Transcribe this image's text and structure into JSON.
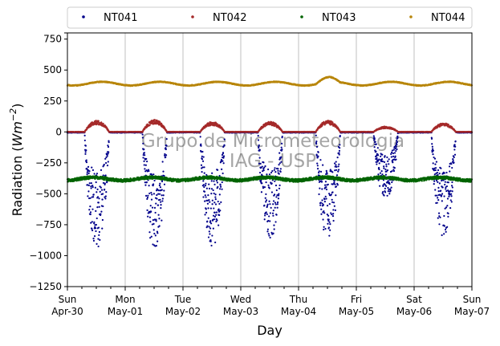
{
  "chart_data": {
    "type": "scatter",
    "title": "",
    "xlabel": "Day",
    "ylabel_main": "Radiation (",
    "ylabel_unit": "Wm",
    "ylabel_exp": "−2",
    "ylabel_close": ")",
    "ylim": [
      -1250,
      800
    ],
    "yticks": [
      800,
      750,
      500,
      250,
      0,
      -250,
      -500,
      -750,
      -1000,
      -1250
    ],
    "ytick_labels": [
      "",
      "750",
      "500",
      "250",
      "0",
      "−250",
      "−500",
      "−750",
      "−1000",
      "−1250"
    ],
    "xlim": [
      "2017-04-30",
      "2017-05-07"
    ],
    "xticks": [
      {
        "day": "Sun",
        "date": "Apr-30"
      },
      {
        "day": "Mon",
        "date": "May-01"
      },
      {
        "day": "Tue",
        "date": "May-02"
      },
      {
        "day": "Wed",
        "date": "May-03"
      },
      {
        "day": "Thu",
        "date": "May-04"
      },
      {
        "day": "Fri",
        "date": "May-05"
      },
      {
        "day": "Sat",
        "date": "May-06"
      },
      {
        "day": "Sun",
        "date": "May-07"
      }
    ],
    "grid": "vertical",
    "legend": {
      "placement": "top-outside",
      "ncol": 4
    },
    "watermark": [
      "Grupo de Micrometeorologia",
      "IAG - USP"
    ],
    "series": [
      {
        "name": "NT041",
        "color": "#00008b",
        "baseline": -5,
        "daily_min": [
          -940,
          -960,
          -930,
          -870,
          -890,
          -540,
          -860
        ]
      },
      {
        "name": "NT042",
        "color": "#a52a2a",
        "baseline": 0,
        "daily_max": [
          85,
          90,
          75,
          75,
          85,
          40,
          65
        ]
      },
      {
        "name": "NT043",
        "color": "#006400",
        "baseline": -380,
        "range": [
          -410,
          -330
        ]
      },
      {
        "name": "NT044",
        "color": "#b8860b",
        "baseline": 390,
        "range": [
          370,
          460
        ]
      }
    ]
  }
}
